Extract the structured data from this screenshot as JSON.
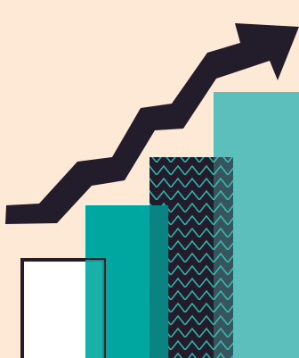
{
  "colors": {
    "background": "#fde9d6",
    "dark": "#221c2b",
    "white": "#ffffff",
    "teal_dark": "#00a7a0",
    "teal_light": "#5dbfbb",
    "zigzag_stroke": "#2fb3ad"
  },
  "illustration": {
    "subject": "rising-bar-graph-with-trend-arrow",
    "bar_count": 4,
    "arrow_icon": "trend-up-arrow-icon"
  }
}
